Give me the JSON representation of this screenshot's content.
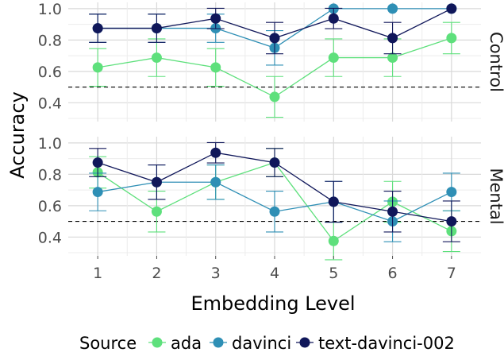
{
  "chart_data": {
    "type": "line",
    "xlabel": "Embedding Level",
    "ylabel": "Accuracy",
    "x": [
      1,
      2,
      3,
      4,
      5,
      6,
      7
    ],
    "x_tick_labels": [
      "1",
      "2",
      "3",
      "4",
      "5",
      "6",
      "7"
    ],
    "y_tick_labels": [
      "0.4",
      "0.6",
      "0.8",
      "1.0"
    ],
    "ylim": [
      0.28,
      1.04
    ],
    "reference_line": {
      "y": 0.5,
      "style": "dashed"
    },
    "grid": true,
    "legend": {
      "title": "Source",
      "placement": "bottom",
      "entries": [
        "ada",
        "davinci",
        "text-davinci-002"
      ]
    },
    "colors": {
      "ada": "#5ee07c",
      "davinci": "#2e8fb5",
      "text-davinci-002": "#10175a",
      "panel_bg": "#ffffff",
      "grid": "#d9d9d9"
    },
    "panels": [
      {
        "label": "Control",
        "series": [
          {
            "name": "ada",
            "values": [
              0.625,
              0.6875,
              0.625,
              0.4375,
              0.6875,
              0.6875,
              0.8125
            ],
            "error": [
              0.12,
              0.12,
              0.12,
              0.13,
              0.12,
              0.12,
              0.1
            ]
          },
          {
            "name": "davinci",
            "values": [
              0.875,
              0.875,
              0.875,
              0.75,
              1.0,
              1.0,
              1.0
            ],
            "error": [
              0.09,
              0.09,
              0.09,
              0.11,
              0.0,
              0.0,
              0.0
            ]
          },
          {
            "name": "text-davinci-002",
            "values": [
              0.875,
              0.875,
              0.9375,
              0.8125,
              0.9375,
              0.8125,
              1.0
            ],
            "error": [
              0.09,
              0.09,
              0.065,
              0.1,
              0.065,
              0.1,
              0.0
            ]
          }
        ]
      },
      {
        "label": "Mental",
        "series": [
          {
            "name": "ada",
            "values": [
              0.8125,
              0.5625,
              0.75,
              0.875,
              0.375,
              0.625,
              0.4375
            ],
            "error": [
              0.1,
              0.13,
              0.11,
              0.09,
              0.12,
              0.13,
              0.13
            ]
          },
          {
            "name": "davinci",
            "values": [
              0.6875,
              0.75,
              0.75,
              0.5625,
              0.625,
              0.5,
              0.6875
            ],
            "error": [
              0.12,
              0.11,
              0.11,
              0.13,
              0.13,
              0.13,
              0.12
            ]
          },
          {
            "name": "text-davinci-002",
            "values": [
              0.875,
              0.75,
              0.9375,
              0.875,
              0.625,
              0.5625,
              0.5
            ],
            "error": [
              0.09,
              0.11,
              0.065,
              0.09,
              0.13,
              0.13,
              0.13
            ]
          }
        ]
      }
    ]
  }
}
